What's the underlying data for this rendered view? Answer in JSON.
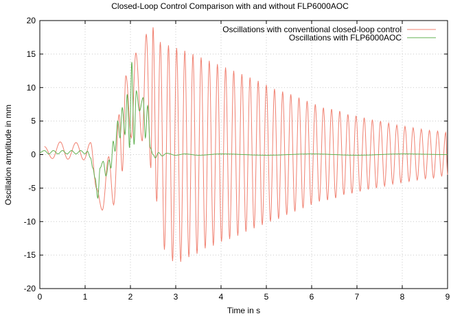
{
  "chart_data": {
    "type": "line",
    "title": "Closed-Loop Control Comparison with and without FLP6000AOC",
    "xlabel": "Time in s",
    "ylabel": "Oscillation amplitude in mm",
    "xlim": [
      0,
      9
    ],
    "ylim": [
      -20,
      20
    ],
    "xticks": [
      0,
      1,
      2,
      3,
      4,
      5,
      6,
      7,
      8,
      9
    ],
    "yticks": [
      -20,
      -15,
      -10,
      -5,
      0,
      5,
      10,
      15,
      20
    ],
    "grid": true,
    "legend_position": "top-right",
    "series": [
      {
        "name": "Oscillations with conventional closed-loop control",
        "color": "#f08070",
        "peaks": [
          [
            0.1,
            1.2
          ],
          [
            0.28,
            -0.6
          ],
          [
            0.45,
            1.9
          ],
          [
            0.62,
            -0.7
          ],
          [
            0.8,
            1.8
          ],
          [
            0.97,
            -0.8
          ],
          [
            1.12,
            1.8
          ],
          [
            1.25,
            -5.0
          ],
          [
            1.38,
            -8.3
          ],
          [
            1.52,
            -0.3
          ],
          [
            1.63,
            -7.5
          ],
          [
            1.75,
            6.0
          ],
          [
            1.82,
            -2.5
          ],
          [
            1.9,
            11.8
          ],
          [
            2.02,
            2.5
          ],
          [
            2.12,
            15.2
          ],
          [
            2.26,
            2.0
          ],
          [
            2.35,
            18.0
          ],
          [
            2.45,
            -2.0
          ],
          [
            2.5,
            19.0
          ],
          [
            2.58,
            -7.0
          ],
          [
            2.66,
            16.8
          ],
          [
            2.75,
            -14.2
          ],
          [
            2.84,
            16.3
          ],
          [
            2.93,
            -15.9
          ],
          [
            3.02,
            15.9
          ],
          [
            3.11,
            -16.0
          ],
          [
            3.2,
            15.5
          ],
          [
            3.29,
            -15.3
          ],
          [
            3.38,
            15.0
          ],
          [
            3.47,
            -14.8
          ],
          [
            3.56,
            14.5
          ],
          [
            3.65,
            -14.0
          ],
          [
            3.74,
            14.0
          ],
          [
            3.83,
            -13.6
          ],
          [
            3.92,
            13.5
          ],
          [
            4.01,
            -13.0
          ],
          [
            4.1,
            13.0
          ],
          [
            4.19,
            -12.6
          ],
          [
            4.28,
            12.5
          ],
          [
            4.37,
            -12.1
          ],
          [
            4.46,
            12.0
          ],
          [
            4.55,
            -11.5
          ],
          [
            4.64,
            11.5
          ],
          [
            4.73,
            -11.0
          ],
          [
            4.82,
            11.0
          ],
          [
            4.91,
            -10.5
          ],
          [
            5.0,
            10.4
          ],
          [
            5.09,
            -10.0
          ],
          [
            5.18,
            9.8
          ],
          [
            5.27,
            -9.6
          ],
          [
            5.36,
            9.4
          ],
          [
            5.45,
            -9.0
          ],
          [
            5.54,
            9.0
          ],
          [
            5.63,
            -8.5
          ],
          [
            5.72,
            8.5
          ],
          [
            5.81,
            -8.0
          ],
          [
            5.9,
            8.0
          ],
          [
            5.99,
            -7.5
          ],
          [
            6.08,
            7.5
          ],
          [
            6.17,
            -7.0
          ],
          [
            6.26,
            7.0
          ],
          [
            6.35,
            -6.8
          ],
          [
            6.44,
            6.8
          ],
          [
            6.53,
            -6.5
          ],
          [
            6.62,
            6.5
          ],
          [
            6.71,
            -6.0
          ],
          [
            6.8,
            6.0
          ],
          [
            6.89,
            -5.8
          ],
          [
            6.98,
            5.8
          ],
          [
            7.07,
            -5.5
          ],
          [
            7.16,
            5.5
          ],
          [
            7.25,
            -5.2
          ],
          [
            7.34,
            5.2
          ],
          [
            7.43,
            -5.0
          ],
          [
            7.52,
            5.0
          ],
          [
            7.61,
            -4.7
          ],
          [
            7.7,
            4.7
          ],
          [
            7.79,
            -4.4
          ],
          [
            7.88,
            4.4
          ],
          [
            7.97,
            -4.2
          ],
          [
            8.06,
            4.2
          ],
          [
            8.15,
            -4.0
          ],
          [
            8.24,
            4.0
          ],
          [
            8.33,
            -3.8
          ],
          [
            8.42,
            3.8
          ],
          [
            8.51,
            -3.6
          ],
          [
            8.6,
            3.6
          ],
          [
            8.69,
            -3.5
          ],
          [
            8.78,
            3.5
          ],
          [
            8.87,
            -3.2
          ],
          [
            8.96,
            3.3
          ],
          [
            9.0,
            -3.0
          ]
        ]
      },
      {
        "name": "Oscillations with FLP6000AOC",
        "color": "#60b050",
        "peaks": [
          [
            0.0,
            0.3
          ],
          [
            0.1,
            0.6
          ],
          [
            0.2,
            0.1
          ],
          [
            0.3,
            0.6
          ],
          [
            0.4,
            0.1
          ],
          [
            0.5,
            0.6
          ],
          [
            0.6,
            0.1
          ],
          [
            0.7,
            0.6
          ],
          [
            0.8,
            0.1
          ],
          [
            0.9,
            0.6
          ],
          [
            1.0,
            0.1
          ],
          [
            1.05,
            0.5
          ],
          [
            1.12,
            -0.5
          ],
          [
            1.17,
            -2.0
          ],
          [
            1.22,
            -3.5
          ],
          [
            1.28,
            -6.5
          ],
          [
            1.33,
            -2.0
          ],
          [
            1.4,
            -1.0
          ],
          [
            1.46,
            -3.2
          ],
          [
            1.53,
            -0.8
          ],
          [
            1.57,
            -2.0
          ],
          [
            1.62,
            2.0
          ],
          [
            1.66,
            0.5
          ],
          [
            1.72,
            5.0
          ],
          [
            1.77,
            2.5
          ],
          [
            1.82,
            7.0
          ],
          [
            1.88,
            3.0
          ],
          [
            1.93,
            9.0
          ],
          [
            1.98,
            1.0
          ],
          [
            2.03,
            13.8
          ],
          [
            2.08,
            1.5
          ],
          [
            2.13,
            9.5
          ],
          [
            2.2,
            6.5
          ],
          [
            2.28,
            8.5
          ],
          [
            2.33,
            2.5
          ],
          [
            2.38,
            7.3
          ],
          [
            2.44,
            1.0
          ],
          [
            2.5,
            0.0
          ],
          [
            2.55,
            -0.5
          ],
          [
            2.62,
            0.3
          ],
          [
            2.7,
            -0.2
          ],
          [
            2.8,
            0.2
          ],
          [
            3.0,
            -0.1
          ],
          [
            3.2,
            0.1
          ],
          [
            3.5,
            -0.1
          ],
          [
            4.0,
            0.1
          ],
          [
            5.0,
            -0.1
          ],
          [
            6.0,
            0.1
          ],
          [
            7.0,
            -0.1
          ],
          [
            8.0,
            0.1
          ],
          [
            9.0,
            0.0
          ]
        ]
      }
    ]
  }
}
